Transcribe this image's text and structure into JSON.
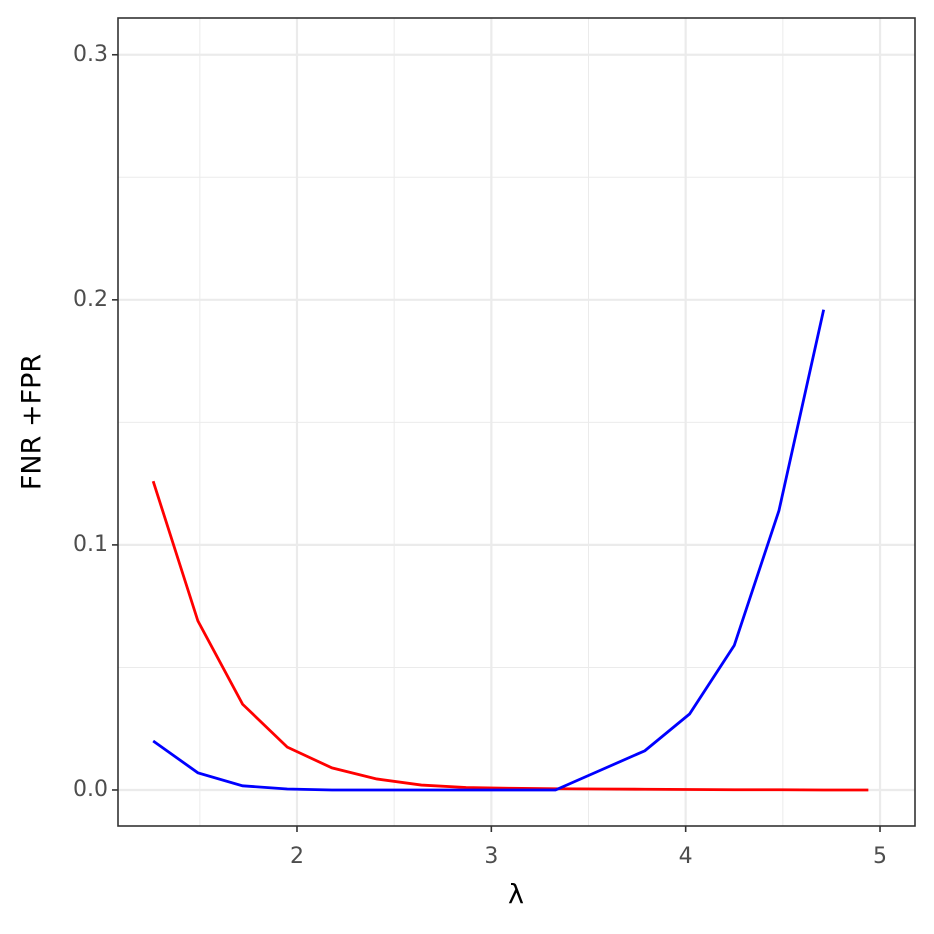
{
  "chart_data": {
    "type": "line",
    "x_label": "λ",
    "y_label": "FNR +FPR",
    "xlim": [
      1.079,
      5.18
    ],
    "ylim": [
      -0.0147,
      0.315
    ],
    "xticks": [
      2,
      3,
      4,
      5
    ],
    "yticks": [
      {
        "value": 0,
        "label": "0.0"
      },
      {
        "value": 0.1,
        "label": "0.1"
      },
      {
        "value": 0.2,
        "label": "0.2"
      },
      {
        "value": 0.3,
        "label": "0.3"
      }
    ],
    "x_minor_ticks": [
      1.5,
      2.5,
      3.5,
      4.5
    ],
    "y_minor_ticks": [
      0.05,
      0.15,
      0.25
    ],
    "grid": true,
    "series": [
      {
        "color": "#ff0000",
        "x": [
          1.26,
          1.49,
          1.72,
          1.95,
          2.18,
          2.41,
          2.64,
          2.87,
          3.1,
          3.33,
          3.56,
          3.79,
          4.02,
          4.25,
          4.48,
          4.71,
          4.94
        ],
        "values": [
          0.126,
          0.069,
          0.035,
          0.0175,
          0.009,
          0.0045,
          0.002,
          0.001,
          0.0007,
          0.0005,
          0.0004,
          0.0003,
          0.0002,
          0.0001,
          0.0001,
          0.0,
          0.0
        ]
      },
      {
        "color": "#0000ff",
        "x": [
          1.26,
          1.49,
          1.72,
          1.95,
          2.18,
          2.41,
          2.64,
          2.87,
          3.1,
          3.33,
          3.56,
          3.79,
          4.02,
          4.25,
          4.48,
          4.71
        ],
        "values": [
          0.02,
          0.007,
          0.0017,
          0.0004,
          0.0,
          0.0,
          0.0,
          0.0,
          0.0,
          0.0,
          0.008,
          0.016,
          0.031,
          0.059,
          0.114,
          0.196
        ]
      }
    ]
  }
}
